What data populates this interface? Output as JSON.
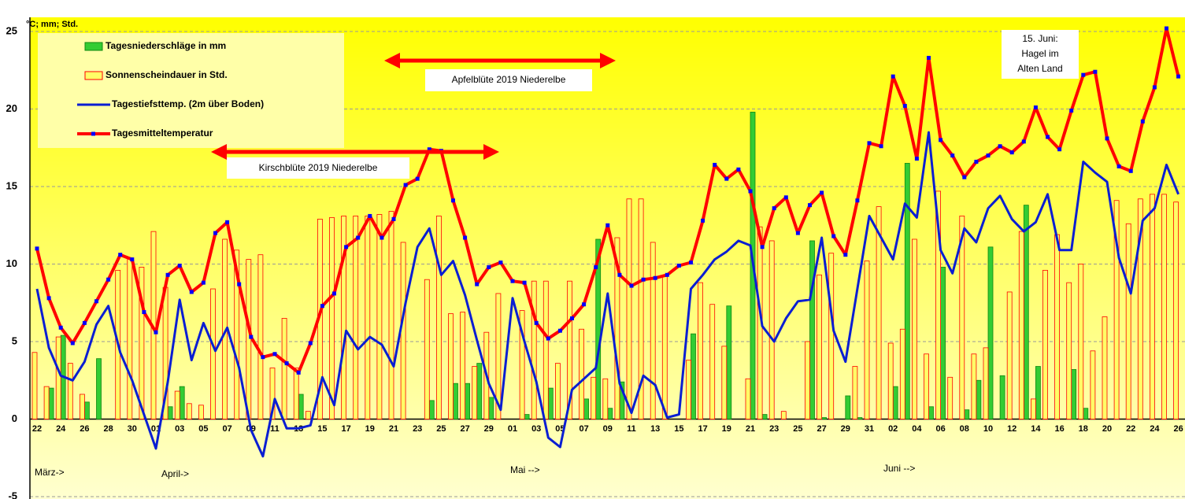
{
  "chart_data": {
    "type": "combo",
    "y_label": "°C; mm; Std.",
    "ylim": [
      -5,
      25
    ],
    "yticks": [
      -5,
      0,
      5,
      10,
      15,
      20,
      25
    ],
    "grid": true,
    "legend": "upper left",
    "categories": [
      "22",
      null,
      "24",
      null,
      "26",
      null,
      "28",
      null,
      "30",
      null,
      "01",
      null,
      "03",
      null,
      "05",
      null,
      "07",
      null,
      "09",
      null,
      "11",
      null,
      "13",
      null,
      "15",
      null,
      "17",
      null,
      "19",
      null,
      "21",
      null,
      "23",
      null,
      "25",
      null,
      "27",
      null,
      "29",
      null,
      "01",
      null,
      "03",
      null,
      "05",
      null,
      "07",
      null,
      "09",
      null,
      "11",
      null,
      "13",
      null,
      "15",
      null,
      "17",
      null,
      "19",
      null,
      "21",
      null,
      "23",
      null,
      "25",
      null,
      "27",
      null,
      "29",
      null,
      "31",
      null,
      "02",
      null,
      "04",
      null,
      "06",
      null,
      "08",
      null,
      "10",
      null,
      "12",
      null,
      "14",
      null,
      "16",
      null,
      "18",
      null,
      "20",
      null,
      "22",
      null,
      "24",
      null,
      "26"
    ],
    "month_labels": [
      "März->",
      "April->",
      "Mai -->",
      "Juni -->"
    ],
    "annotations": [
      "Apfelblüte 2019 Niederelbe",
      "Kirschblüte 2019 Niederelbe",
      [
        "15. Juni:",
        "Hagel im",
        "Alten Land"
      ]
    ],
    "series": [
      {
        "name": "Tagesniederschläge in mm",
        "type": "bar",
        "color": "#33cc33",
        "values": [
          0,
          2.0,
          5.4,
          0,
          1.1,
          3.9,
          0,
          0,
          0,
          0,
          0,
          0.8,
          2.1,
          0,
          0,
          0,
          0,
          0,
          0,
          0,
          0,
          0,
          1.6,
          0,
          0,
          0,
          0,
          0,
          0,
          0,
          0,
          0,
          0,
          1.2,
          0,
          2.3,
          2.3,
          3.6,
          1.4,
          0,
          0,
          0.3,
          0,
          2.0,
          0,
          0,
          1.3,
          11.6,
          0.7,
          2.4,
          0,
          0,
          0,
          0,
          0,
          5.5,
          0,
          0,
          7.3,
          0,
          19.8,
          0.3,
          0,
          0,
          0,
          11.5,
          0.1,
          0,
          1.5,
          0.1,
          0,
          0,
          2.1,
          16.5,
          0,
          0.8,
          9.8,
          0,
          0.6,
          2.5,
          11.1,
          2.8,
          0,
          13.8,
          3.4,
          0,
          0,
          3.2,
          0.7,
          0,
          0,
          0,
          0,
          0,
          0,
          0,
          0
        ]
      },
      {
        "name": "Sonnenscheindauer in Std.",
        "type": "bar",
        "color": "#ffff66",
        "values": [
          4.3,
          2.1,
          5.3,
          3.6,
          1.6,
          0,
          0,
          9.6,
          10.4,
          9.8,
          12.1,
          8.5,
          1.8,
          1.0,
          0.9,
          8.4,
          11.6,
          10.9,
          10.3,
          10.6,
          3.3,
          6.5,
          3.3,
          0.5,
          12.9,
          13.0,
          13.1,
          13.1,
          13.1,
          13.2,
          13.4,
          11.4,
          0,
          9.0,
          13.1,
          6.8,
          6.9,
          3.4,
          5.6,
          8.1,
          0,
          7.0,
          8.9,
          8.9,
          3.6,
          8.9,
          5.8,
          2.7,
          2.6,
          11.7,
          14.2,
          14.2,
          11.4,
          9.2,
          0,
          3.8,
          8.8,
          7.4,
          4.7,
          0,
          2.6,
          12.4,
          11.5,
          0.5,
          0,
          5.0,
          9.3,
          10.7,
          0,
          3.4,
          10.2,
          13.7,
          4.9,
          5.8,
          11.6,
          4.2,
          14.7,
          2.7,
          13.1,
          4.2,
          4.6,
          0,
          8.2,
          12.1,
          1.3,
          9.6,
          11.9,
          8.8,
          10.0,
          4.4,
          6.6,
          14.1,
          12.6,
          14.2,
          14.5,
          14.5,
          14.0
        ]
      },
      {
        "name": "Tagestiefsttemp. (2m über Boden)",
        "type": "line",
        "color": "#0a1ed2",
        "values": [
          8.4,
          4.6,
          2.8,
          2.5,
          3.7,
          6.1,
          7.3,
          4.3,
          2.5,
          0.3,
          -1.9,
          2.4,
          7.7,
          3.8,
          6.2,
          4.4,
          5.9,
          3.3,
          -0.7,
          -2.4,
          1.3,
          -0.6,
          -0.6,
          -0.4,
          2.7,
          0.9,
          5.7,
          4.5,
          5.3,
          4.8,
          3.4,
          7.5,
          11.1,
          12.3,
          9.3,
          10.2,
          8.0,
          5.1,
          2.3,
          0.6,
          7.8,
          5.0,
          2.4,
          -1.2,
          -1.8,
          1.9,
          2.6,
          3.3,
          8.1,
          2.3,
          0.4,
          2.8,
          2.2,
          0.1,
          0.3,
          8.4,
          9.3,
          10.3,
          10.8,
          11.5,
          11.2,
          6.0,
          5.0,
          6.5,
          7.6,
          7.7,
          11.7,
          5.7,
          3.7,
          8.4,
          13.1,
          11.7,
          10.3,
          13.9,
          13.0,
          18.5,
          10.9,
          9.4,
          12.3,
          11.4,
          13.6,
          14.4,
          12.9,
          12.1,
          12.7,
          14.5,
          10.9,
          10.9,
          16.6,
          15.9,
          15.3,
          10.4,
          8.1,
          12.8,
          13.6,
          16.4,
          14.5
        ]
      },
      {
        "name": "Tagesmitteltemperatur",
        "type": "line",
        "color": "#ff0000",
        "marker_color": "#0000ff",
        "values": [
          11.0,
          7.8,
          5.9,
          4.9,
          6.2,
          7.6,
          9.0,
          10.6,
          10.3,
          6.9,
          5.6,
          9.3,
          9.9,
          8.2,
          8.8,
          12.0,
          12.7,
          8.7,
          5.3,
          4.0,
          4.2,
          3.6,
          3.0,
          4.9,
          7.3,
          8.1,
          11.1,
          11.7,
          13.1,
          11.7,
          12.9,
          15.1,
          15.5,
          17.4,
          17.3,
          14.1,
          11.7,
          8.7,
          9.8,
          10.1,
          8.9,
          8.8,
          6.2,
          5.2,
          5.7,
          6.5,
          7.4,
          9.8,
          12.5,
          9.3,
          8.6,
          9.0,
          9.1,
          9.3,
          9.9,
          10.1,
          12.8,
          16.4,
          15.5,
          16.1,
          14.7,
          11.1,
          13.6,
          14.3,
          12.0,
          13.8,
          14.6,
          11.8,
          10.6,
          14.1,
          17.8,
          17.6,
          22.1,
          20.2,
          16.8,
          23.3,
          18.0,
          17.0,
          15.6,
          16.6,
          17.0,
          17.6,
          17.2,
          17.9,
          20.1,
          18.2,
          17.4,
          19.9,
          22.2,
          22.4,
          18.1,
          16.3,
          16.0,
          19.2,
          21.4,
          25.2,
          22.1
        ]
      }
    ]
  }
}
